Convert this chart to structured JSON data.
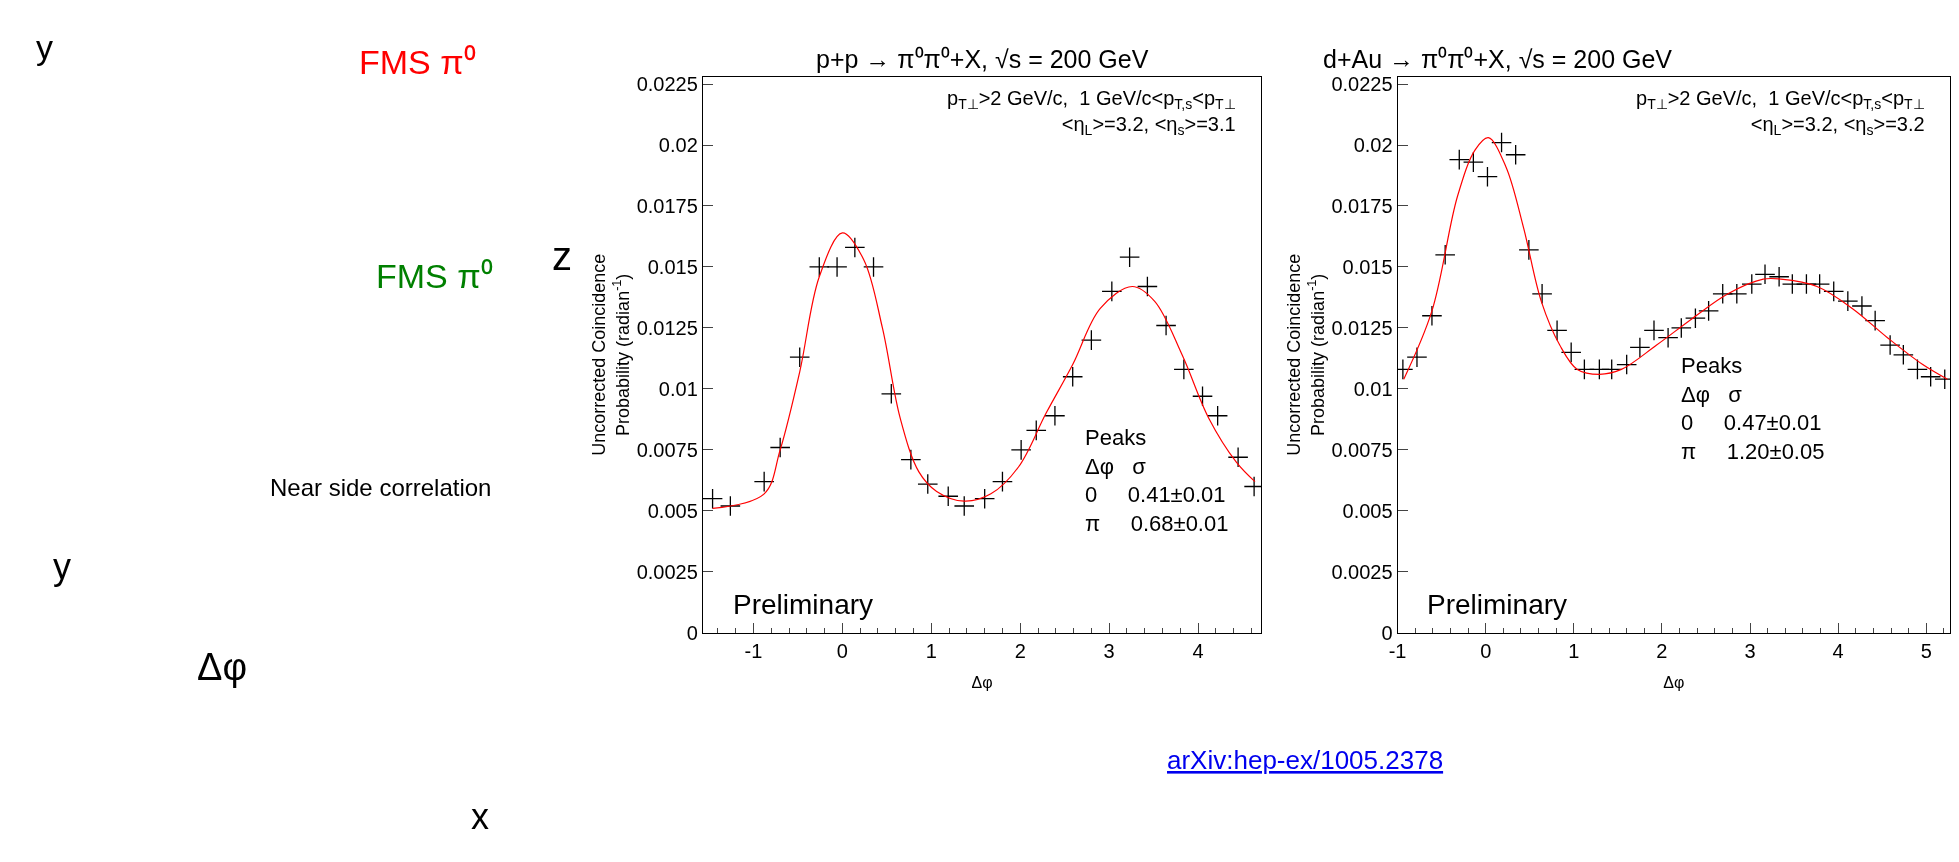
{
  "chart_data": [
    {
      "type": "other",
      "annotations": [
        "y",
        "FMS π⁰",
        "z",
        "FMS π⁰",
        "Near side correlation",
        "y",
        "x",
        "Δφ",
        "arXiv:hep-ex/1005.2378"
      ]
    },
    {
      "type": "scatter",
      "title": "p+p → π⁰π⁰+X, √s = 200 GeV",
      "subtitle": "p$_{T⊥}$>2 GeV/c,  1 GeV/c<p$_{T,s}$<p$_{T⊥}$\n<η$_{L}$>=3.2, <η$_{s}$>=3.1",
      "xlabel": "Δφ",
      "ylabel": "Uncorrected Coincidence\nProbability (radian$^{-1}$)",
      "annotations": [
        "Peaks\nΔφ   σ\n0     0.41±0.01\nπ     0.68±0.01",
        "Preliminary"
      ],
      "xlim": [
        -1.57,
        4.71
      ],
      "xticks": [
        -1,
        0,
        1,
        2,
        3,
        4
      ],
      "ylim": [
        0,
        0.0228
      ],
      "yticks": [
        0,
        0.0025,
        0.005,
        0.0075,
        0.01,
        0.0125,
        0.015,
        0.0175,
        0.02,
        0.0225
      ],
      "series": [
        {
          "type": "scatter",
          "marker": "cross",
          "color": "#000000",
          "x": [
            -1.46,
            -1.26,
            -0.88,
            -0.7,
            -0.48,
            -0.26,
            -0.06,
            0.14,
            0.35,
            0.55,
            0.77,
            0.96,
            1.19,
            1.37,
            1.6,
            1.8,
            2.01,
            2.18,
            2.39,
            2.59,
            2.8,
            3.03,
            3.23,
            3.43,
            3.64,
            3.84,
            4.05,
            4.22,
            4.45,
            4.63
          ],
          "values": [
            0.0055,
            0.0052,
            0.0062,
            0.0076,
            0.0113,
            0.015,
            0.015,
            0.0158,
            0.015,
            0.0098,
            0.0071,
            0.0061,
            0.0056,
            0.0052,
            0.0055,
            0.0062,
            0.0075,
            0.0083,
            0.0089,
            0.0105,
            0.012,
            0.014,
            0.0154,
            0.0142,
            0.0126,
            0.0108,
            0.0097,
            0.0089,
            0.0072,
            0.006
          ]
        },
        {
          "type": "line",
          "color": "#ff0000",
          "x": [
            -1.46,
            -0.88,
            -0.7,
            -0.48,
            -0.26,
            0,
            0.24,
            0.45,
            0.65,
            0.86,
            1.06,
            1.37,
            1.67,
            1.98,
            2.29,
            2.59,
            2.9,
            3.26,
            3.51,
            3.82,
            4.12,
            4.43,
            4.64
          ],
          "values": [
            0.0051,
            0.0057,
            0.0075,
            0.0107,
            0.0146,
            0.0164,
            0.0153,
            0.0125,
            0.0088,
            0.0066,
            0.0058,
            0.0054,
            0.0057,
            0.0068,
            0.009,
            0.011,
            0.0133,
            0.0142,
            0.0136,
            0.0114,
            0.0088,
            0.007,
            0.0062
          ]
        }
      ]
    },
    {
      "type": "scatter",
      "title": "d+Au → π⁰π⁰+X, √s = 200 GeV",
      "subtitle": "p$_{T⊥}$>2 GeV/c,  1 GeV/c<p$_{T,s}$<p$_{T⊥}$\n<η$_{L}$>=3.2, <η$_{s}$>=3.2",
      "xlabel": "Δφ",
      "ylabel": "Uncorrected Coincidence\nProbability (radian$^{-1}$)",
      "annotations": [
        "Peaks\nΔφ   σ\n0     0.47±0.01\nπ     1.20±0.05",
        "Preliminary"
      ],
      "xlim": [
        -1,
        5.27
      ],
      "xticks": [
        -1,
        0,
        1,
        2,
        3,
        4,
        5
      ],
      "ylim": [
        0,
        0.0228
      ],
      "yticks": [
        0,
        0.0025,
        0.005,
        0.0075,
        0.01,
        0.0125,
        0.015,
        0.0175,
        0.02,
        0.0225
      ],
      "series": [
        {
          "type": "scatter",
          "marker": "cross",
          "color": "#000000",
          "x": [
            -0.94,
            -0.78,
            -0.61,
            -0.46,
            -0.3,
            -0.14,
            0.02,
            0.18,
            0.34,
            0.49,
            0.64,
            0.81,
            0.97,
            1.12,
            1.29,
            1.43,
            1.6,
            1.75,
            1.91,
            2.07,
            2.22,
            2.38,
            2.53,
            2.69,
            2.85,
            3.02,
            3.17,
            3.33,
            3.48,
            3.64,
            3.79,
            3.95,
            4.11,
            4.27,
            4.42,
            4.59,
            4.74,
            4.9,
            5.05,
            5.21
          ],
          "values": [
            0.0108,
            0.0113,
            0.013,
            0.0155,
            0.0194,
            0.0193,
            0.0187,
            0.0201,
            0.0196,
            0.0157,
            0.0139,
            0.0124,
            0.0115,
            0.0108,
            0.0108,
            0.0108,
            0.011,
            0.0117,
            0.0124,
            0.0121,
            0.0125,
            0.0129,
            0.0132,
            0.0139,
            0.0139,
            0.0143,
            0.0147,
            0.0146,
            0.0143,
            0.0143,
            0.0143,
            0.014,
            0.0136,
            0.0134,
            0.0128,
            0.0118,
            0.0114,
            0.0108,
            0.0105,
            0.0104
          ]
        },
        {
          "type": "line",
          "color": "#ff0000",
          "x": [
            -0.93,
            -0.61,
            -0.32,
            -0.12,
            0.03,
            0.23,
            0.43,
            0.63,
            0.84,
            1.04,
            1.29,
            1.54,
            1.94,
            2.35,
            2.75,
            3.15,
            3.35,
            3.76,
            4.16,
            4.56,
            4.96,
            5.24
          ],
          "values": [
            0.0104,
            0.0132,
            0.0179,
            0.0198,
            0.0203,
            0.0191,
            0.0166,
            0.0136,
            0.0118,
            0.0108,
            0.0106,
            0.0108,
            0.0118,
            0.0129,
            0.0139,
            0.0145,
            0.0145,
            0.0142,
            0.0133,
            0.0121,
            0.011,
            0.0104
          ]
        }
      ]
    }
  ]
}
